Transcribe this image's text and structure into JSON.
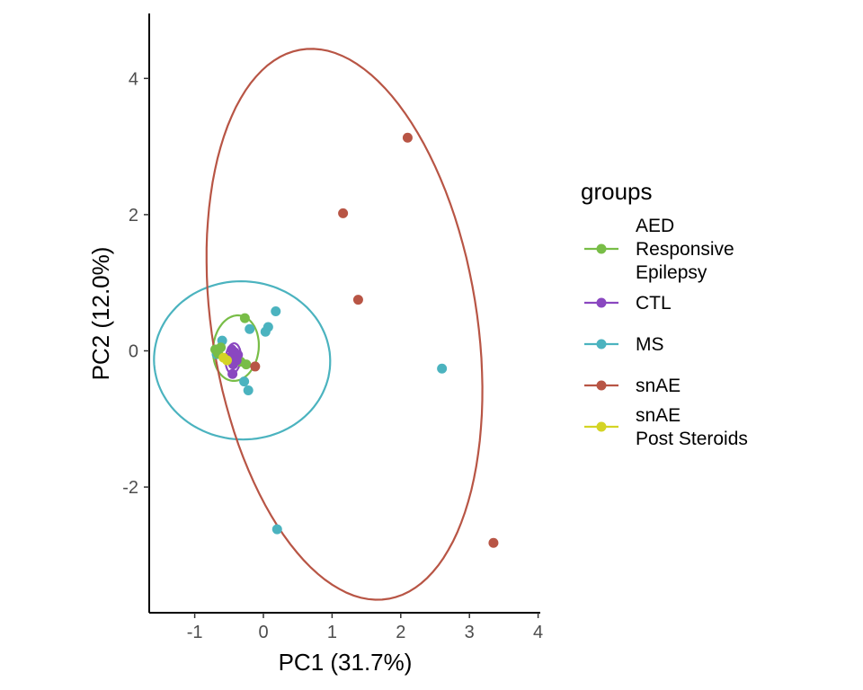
{
  "chart_data": {
    "type": "scatter",
    "xlabel": "PC1 (31.7%)",
    "ylabel": "PC2 (12.0%)",
    "xlim": [
      -1.65,
      4.05
    ],
    "ylim": [
      -3.82,
      4.9
    ],
    "x_ticks": [
      "-1",
      "0",
      "1",
      "2",
      "3",
      "4"
    ],
    "y_ticks": [
      "-2",
      "0",
      "2",
      "4"
    ],
    "grid": false,
    "legend_position": "right",
    "legend": {
      "title": "groups",
      "entries": [
        {
          "label_lines": [
            "AED",
            "Responsive",
            "Epilepsy"
          ],
          "color": "#78BD47"
        },
        {
          "label_lines": [
            "CTL"
          ],
          "color": "#8A47C0"
        },
        {
          "label_lines": [
            "MS"
          ],
          "color": "#4BB3BF"
        },
        {
          "label_lines": [
            "snAE"
          ],
          "color": "#B85545"
        },
        {
          "label_lines": [
            "snAE",
            "Post Steroids"
          ],
          "color": "#D4D425"
        }
      ]
    },
    "series": [
      {
        "name": "MS",
        "color": "#4BB3BF",
        "points": [
          [
            -0.6,
            0.15
          ],
          [
            -0.2,
            0.32
          ],
          [
            0.03,
            0.28
          ],
          [
            0.07,
            0.35
          ],
          [
            0.18,
            0.58
          ],
          [
            -0.28,
            -0.45
          ],
          [
            -0.22,
            -0.58
          ],
          [
            -0.68,
            -0.05
          ],
          [
            0.2,
            -2.62
          ],
          [
            2.6,
            -0.26
          ]
        ],
        "ellipse": {
          "center": [
            -0.31,
            -0.14
          ],
          "semi_axis_1": [
            1.28,
            0.06
          ],
          "semi_axis_2": [
            -0.08,
            1.16
          ]
        }
      },
      {
        "name": "AED Responsive Epilepsy",
        "color": "#78BD47",
        "points": [
          [
            -0.7,
            0.02
          ],
          [
            -0.62,
            0.05
          ],
          [
            -0.27,
            0.48
          ],
          [
            -0.25,
            -0.2
          ],
          [
            -0.33,
            -0.16
          ],
          [
            -0.66,
            -0.04
          ]
        ],
        "ellipse": {
          "center": [
            -0.4,
            0.04
          ],
          "semi_axis_1": [
            0.05,
            0.48
          ],
          "semi_axis_2": [
            -0.33,
            0.03
          ]
        }
      },
      {
        "name": "CTL",
        "color": "#8A47C0",
        "points": [
          [
            -0.46,
            0.02
          ],
          [
            -0.42,
            -0.02
          ],
          [
            -0.37,
            -0.06
          ],
          [
            -0.5,
            -0.1
          ],
          [
            -0.44,
            -0.2
          ],
          [
            -0.45,
            -0.34
          ],
          [
            -0.39,
            -0.14
          ]
        ],
        "ellipse": {
          "center": [
            -0.44,
            -0.11
          ],
          "semi_axis_1": [
            0.02,
            0.22
          ],
          "semi_axis_2": [
            -0.11,
            0.01
          ]
        }
      },
      {
        "name": "snAE",
        "color": "#B85545",
        "points": [
          [
            2.1,
            3.13
          ],
          [
            1.16,
            2.02
          ],
          [
            1.38,
            0.75
          ],
          [
            -0.12,
            -0.23
          ],
          [
            3.35,
            -2.82
          ]
        ],
        "ellipse": {
          "center": [
            1.18,
            0.39
          ],
          "semi_axis_1": [
            -0.65,
            4.03
          ],
          "semi_axis_2": [
            1.9,
            0.35
          ]
        }
      },
      {
        "name": "snAE Post Steroids",
        "color": "#D4D425",
        "points": [
          [
            -0.58,
            -0.1
          ],
          [
            -0.53,
            -0.14
          ]
        ],
        "ellipse": null
      }
    ]
  }
}
